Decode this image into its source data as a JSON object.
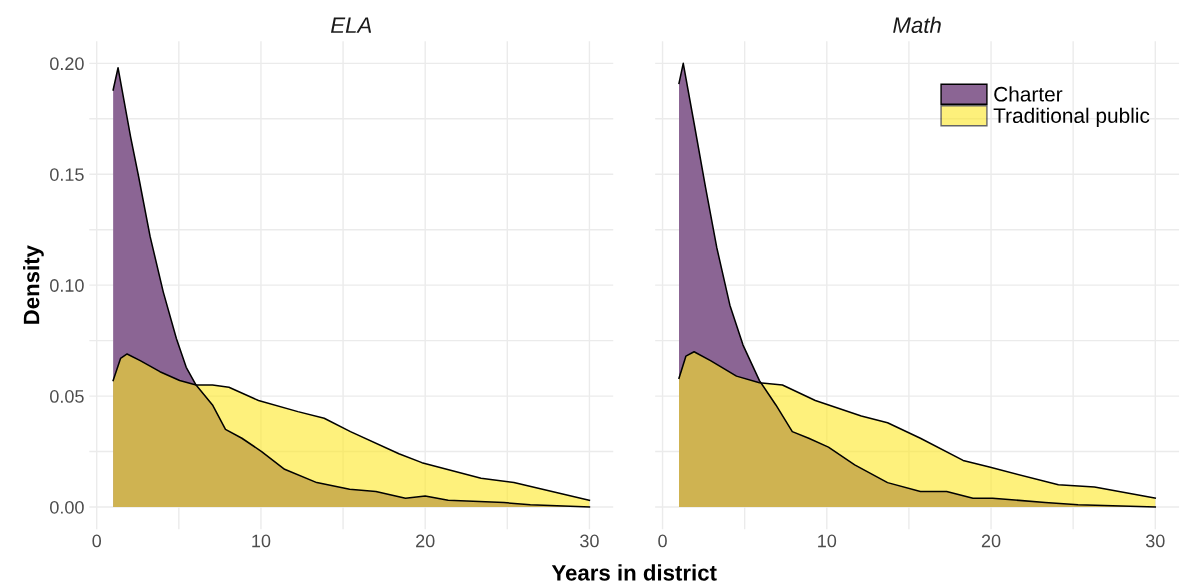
{
  "chart_data": [
    {
      "type": "area",
      "title": "ELA",
      "xlabel": "Years in district",
      "ylabel": "Density",
      "xlim": [
        -0.45,
        31.45
      ],
      "ylim": [
        -0.01,
        0.21
      ],
      "xticks": [
        0,
        {
          "value": 5,
          "label": null
        },
        10,
        {
          "value": 15,
          "label": null
        },
        20,
        {
          "value": 25,
          "label": null
        },
        30
      ],
      "yticks": [
        "0.00",
        {
          "value": 0.025,
          "label": null
        },
        {
          "value": 0.05,
          "label": "0.05"
        },
        {
          "value": 0.075,
          "label": null
        },
        {
          "value": 0.1,
          "label": "0.10"
        },
        {
          "value": 0.125,
          "label": null
        },
        {
          "value": 0.15,
          "label": "0.15"
        },
        {
          "value": 0.175,
          "label": null
        },
        {
          "value": 0.2,
          "label": "0.20"
        }
      ],
      "grid": true,
      "series": [
        {
          "color": "#8b6594",
          "x": [
            1,
            1.3,
            2.06,
            2.55,
            3.25,
            4.05,
            4.85,
            5.45,
            6.05,
            7.05,
            7.84,
            8.84,
            10.04,
            11.44,
            13.4,
            15.4,
            17,
            18.8,
            20,
            21.4,
            24.8,
            26.4,
            30
          ],
          "values": [
            0.188,
            0.198,
            0.167,
            0.149,
            0.122,
            0.097,
            0.076,
            0.063,
            0.055,
            0.046,
            0.035,
            0.031,
            0.025,
            0.017,
            0.011,
            0.008,
            0.007,
            0.004,
            0.005,
            0.003,
            0.002,
            0.001,
            0
          ]
        },
        {
          "color": "#fde725",
          "x": [
            1,
            1.45,
            1.85,
            2.65,
            3.85,
            5.05,
            6.05,
            7.05,
            8.05,
            9.85,
            12.25,
            13.85,
            15.45,
            18.4,
            19.8,
            23.4,
            25.4,
            30
          ],
          "values": [
            0.057,
            0.067,
            0.069,
            0.066,
            0.061,
            0.057,
            0.055,
            0.055,
            0.054,
            0.048,
            0.043,
            0.04,
            0.034,
            0.024,
            0.02,
            0.013,
            0.011,
            0.003
          ]
        }
      ]
    },
    {
      "type": "area",
      "title": "Math",
      "xlim": [
        -0.45,
        31.45
      ],
      "ylim": [
        -0.01,
        0.21
      ],
      "tick_labels": "x",
      "xticks": [
        0,
        {
          "value": 5,
          "label": null
        },
        10,
        {
          "value": 15,
          "label": null
        },
        20,
        {
          "value": 25,
          "label": null
        },
        30
      ],
      "yticks": [
        {
          "value": 0,
          "label": null
        },
        {
          "value": 0.025,
          "label": null
        },
        {
          "value": 0.05,
          "label": null
        },
        {
          "value": 0.075,
          "label": null
        },
        {
          "value": 0.1,
          "label": null
        },
        {
          "value": 0.125,
          "label": null
        },
        {
          "value": 0.15,
          "label": null
        },
        {
          "value": 0.175,
          "label": null
        },
        {
          "value": 0.2,
          "label": null
        }
      ],
      "grid": true,
      "legend": "top right",
      "series": [
        {
          "name": "Charter",
          "color": "#8b6594",
          "x": [
            1,
            1.26,
            1.92,
            2.62,
            3.3,
            4.1,
            4.9,
            5.9,
            6.9,
            7.9,
            8.9,
            10.1,
            11.7,
            13.7,
            15.7,
            17.3,
            18.9,
            20.1,
            23.3,
            25.3,
            30
          ],
          "values": [
            0.191,
            0.2,
            0.173,
            0.144,
            0.117,
            0.091,
            0.073,
            0.057,
            0.046,
            0.034,
            0.031,
            0.027,
            0.019,
            0.011,
            0.007,
            0.007,
            0.004,
            0.004,
            0.002,
            0.001,
            0
          ]
        },
        {
          "name": "Traditional public",
          "color": "#fde725",
          "x": [
            1,
            1.42,
            1.92,
            2.92,
            4.5,
            5.9,
            7.3,
            9.3,
            12.1,
            13.7,
            15.7,
            18.3,
            19.9,
            24.1,
            26.3,
            30
          ],
          "values": [
            0.058,
            0.068,
            0.07,
            0.066,
            0.059,
            0.056,
            0.055,
            0.048,
            0.041,
            0.038,
            0.031,
            0.021,
            0.018,
            0.01,
            0.009,
            0.004
          ]
        }
      ]
    }
  ]
}
